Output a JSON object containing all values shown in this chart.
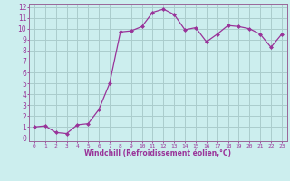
{
  "x": [
    0,
    1,
    2,
    3,
    4,
    5,
    6,
    7,
    8,
    9,
    10,
    11,
    12,
    13,
    14,
    15,
    16,
    17,
    18,
    19,
    20,
    21,
    22,
    23
  ],
  "y": [
    1.0,
    1.1,
    0.5,
    0.4,
    1.2,
    1.3,
    2.6,
    5.0,
    9.7,
    9.8,
    10.2,
    11.5,
    11.8,
    11.3,
    9.9,
    10.1,
    8.8,
    9.5,
    10.3,
    10.2,
    10.0,
    9.5,
    8.3,
    9.5
  ],
  "x_ticks": [
    0,
    1,
    2,
    3,
    4,
    5,
    6,
    7,
    8,
    9,
    10,
    11,
    12,
    13,
    14,
    15,
    16,
    17,
    18,
    19,
    20,
    21,
    22,
    23
  ],
  "y_ticks": [
    0,
    1,
    2,
    3,
    4,
    5,
    6,
    7,
    8,
    9,
    10,
    11,
    12
  ],
  "xlabel": "Windchill (Refroidissement éolien,°C)",
  "ylim": [
    -0.3,
    12.3
  ],
  "xlim": [
    -0.5,
    23.5
  ],
  "line_color": "#993399",
  "marker_color": "#993399",
  "bg_color": "#cceeee",
  "grid_color": "#aacccc",
  "tick_color": "#993399",
  "label_color": "#993399",
  "spine_color": "#996699"
}
